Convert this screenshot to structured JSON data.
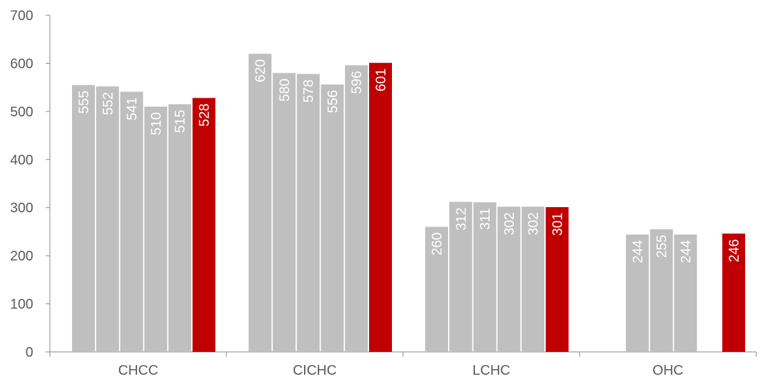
{
  "chart_data": {
    "type": "bar",
    "title": "",
    "xlabel": "",
    "ylabel": "",
    "ylim": [
      0,
      700
    ],
    "yticks": [
      0,
      100,
      200,
      300,
      400,
      500,
      600,
      700
    ],
    "grid": false,
    "legend": "none",
    "categories": [
      "CHCC",
      "CICHC",
      "LCHC",
      "OHC"
    ],
    "series_colors": [
      "#bfbfbf",
      "#bfbfbf",
      "#bfbfbf",
      "#bfbfbf",
      "#bfbfbf",
      "#c00000"
    ],
    "series": [
      {
        "values": [
          555,
          620,
          260,
          0
        ]
      },
      {
        "values": [
          552,
          580,
          312,
          244
        ]
      },
      {
        "values": [
          541,
          578,
          311,
          255
        ]
      },
      {
        "values": [
          510,
          556,
          302,
          244
        ]
      },
      {
        "values": [
          515,
          596,
          302,
          null
        ]
      },
      {
        "values": [
          528,
          601,
          301,
          246
        ]
      }
    ],
    "data_labels": [
      [
        "555",
        "552",
        "541",
        "510",
        "515",
        "528"
      ],
      [
        "620",
        "580",
        "578",
        "556",
        "596",
        "601"
      ],
      [
        "260",
        "312",
        "311",
        "302",
        "302",
        "301"
      ],
      [
        "",
        "244",
        "255",
        "244",
        "",
        "246"
      ]
    ]
  }
}
